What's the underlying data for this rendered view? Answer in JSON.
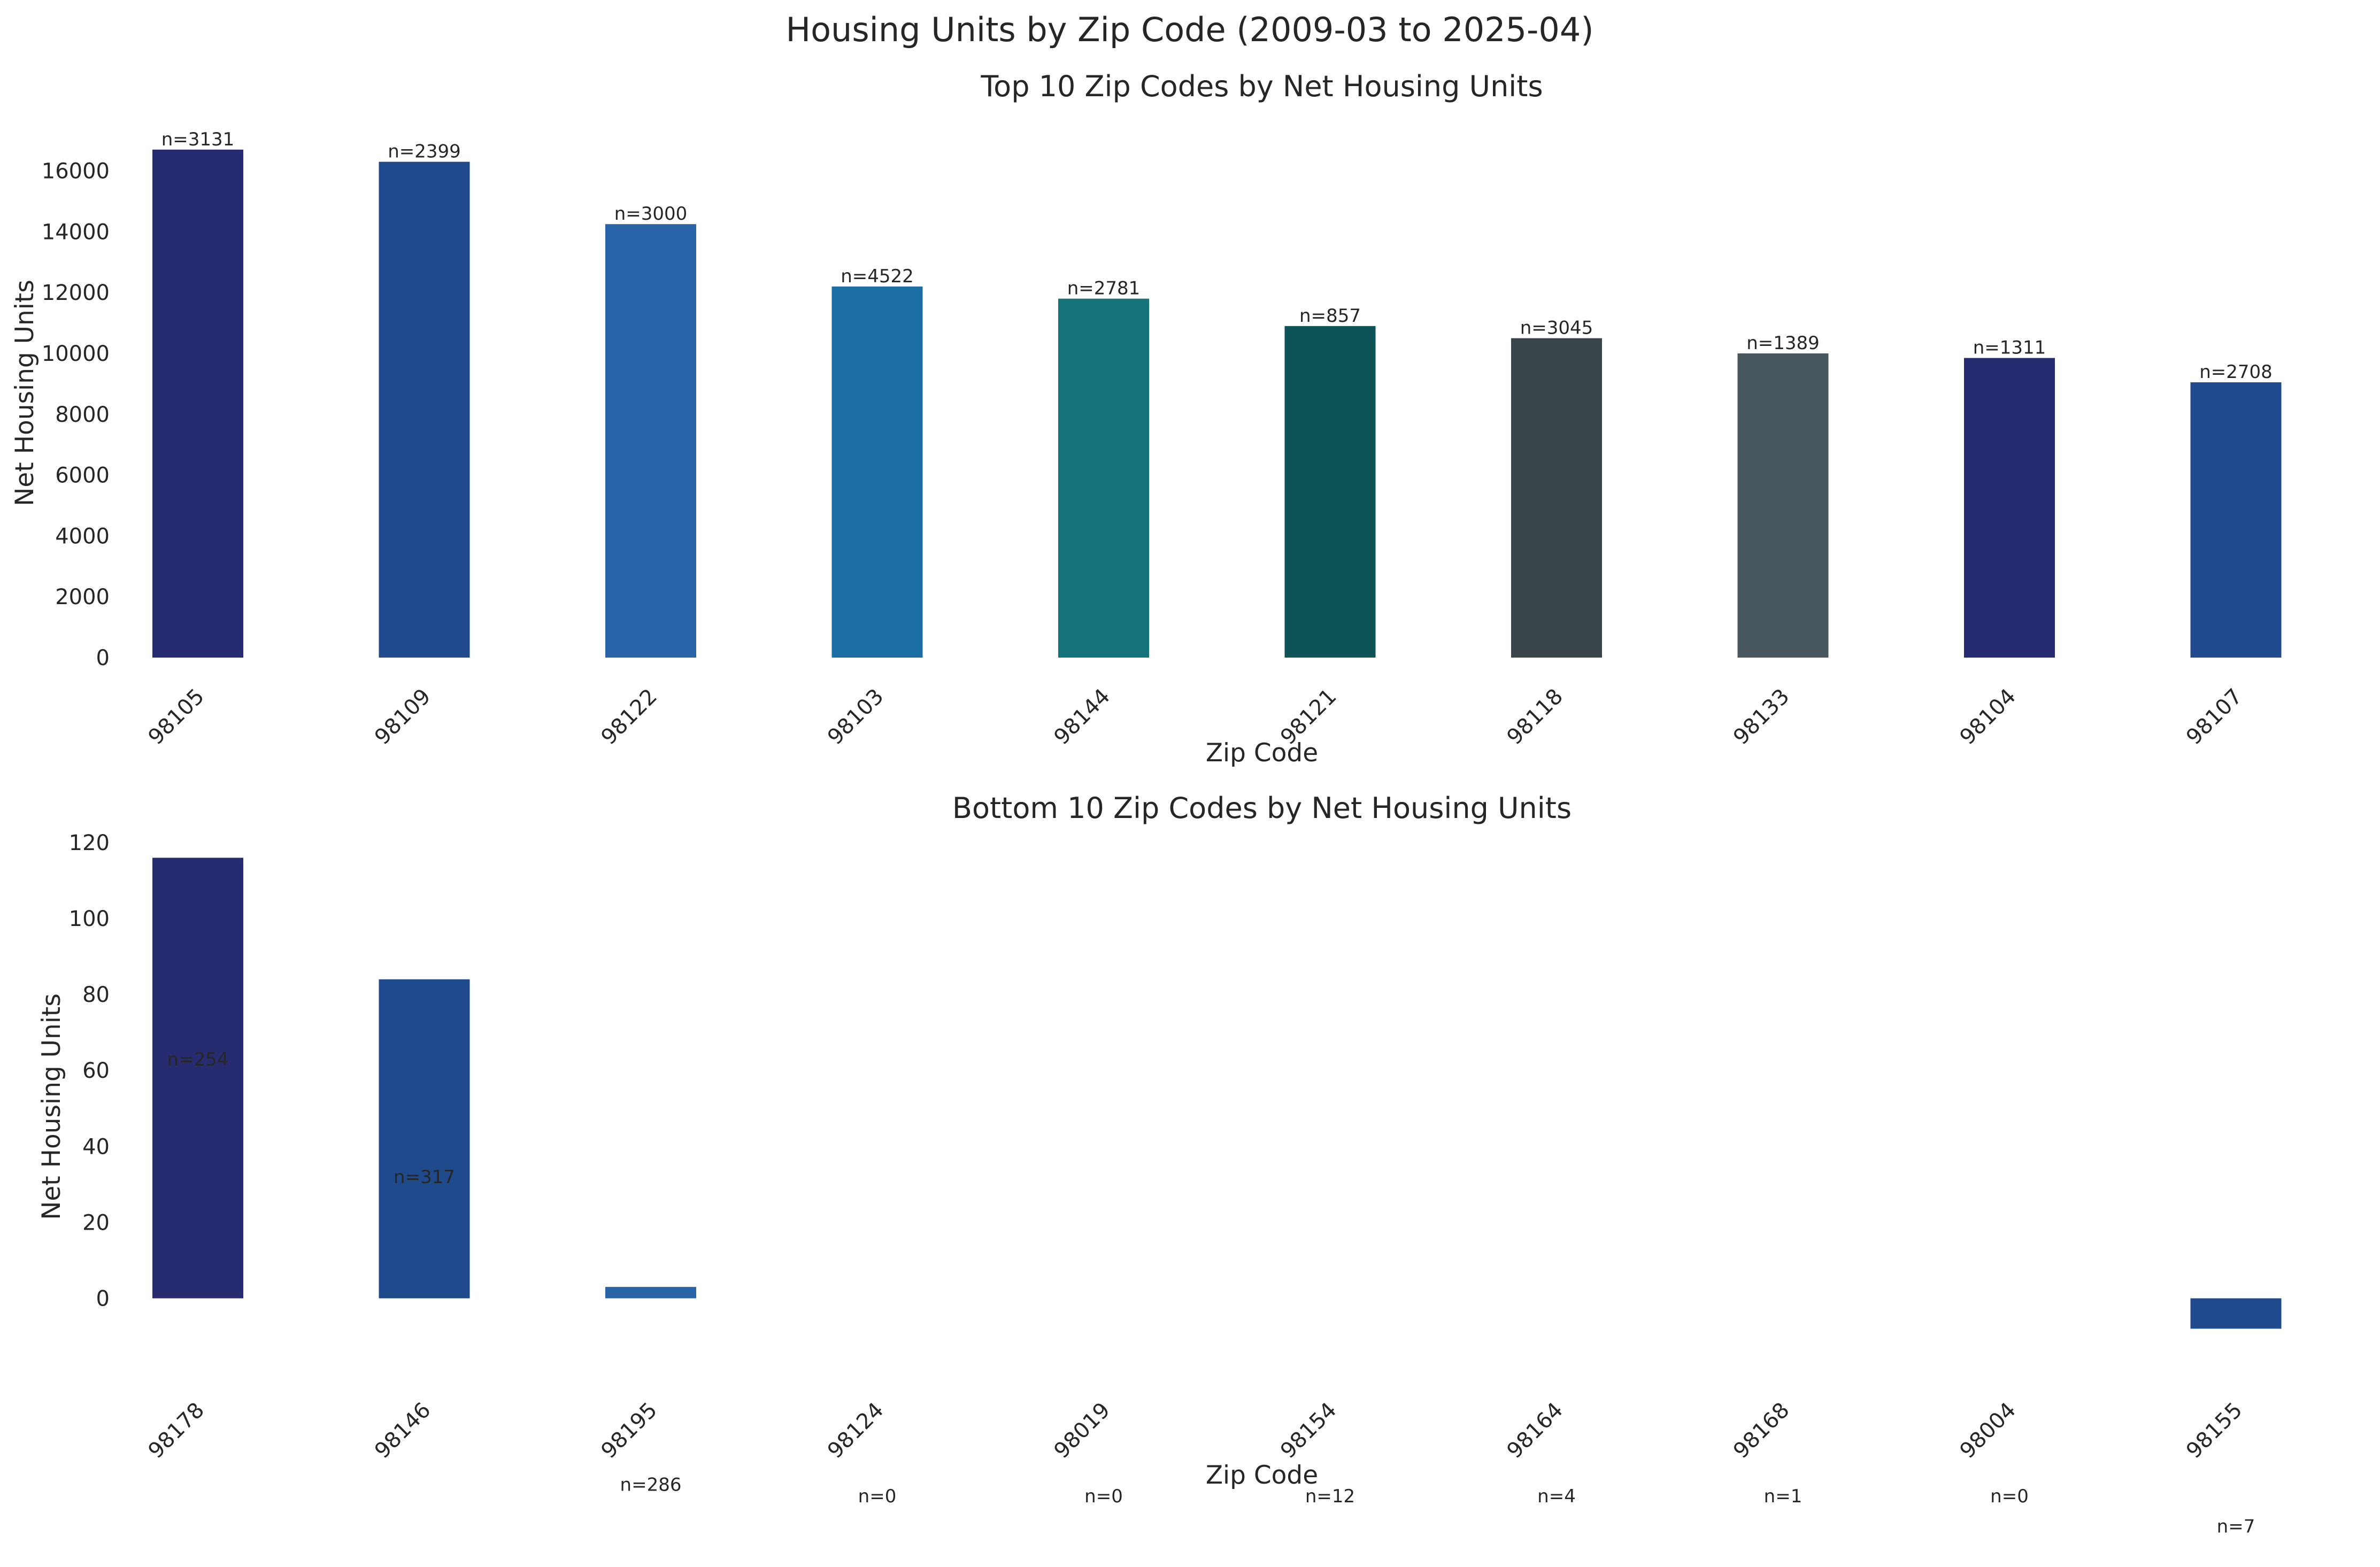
{
  "figure": {
    "title": "Housing Units by Zip Code (2009-03 to 2025-04)"
  },
  "chart_data": [
    {
      "type": "bar",
      "title": "Top 10 Zip Codes by Net Housing Units",
      "xlabel": "Zip Code",
      "ylabel": "Net Housing Units",
      "categories": [
        "98105",
        "98109",
        "98122",
        "98103",
        "98144",
        "98121",
        "98118",
        "98133",
        "98104",
        "98107"
      ],
      "values": [
        16700,
        16300,
        14250,
        12200,
        11800,
        10900,
        10500,
        10000,
        9850,
        9050
      ],
      "annotations": [
        "n=3131",
        "n=2399",
        "n=3000",
        "n=4522",
        "n=2781",
        "n=857",
        "n=3045",
        "n=1389",
        "n=1311",
        "n=2708"
      ],
      "colors": [
        "#262c6f",
        "#1f4a8c",
        "#2a64a8",
        "#1b6ea4",
        "#14737a",
        "#0e5356",
        "#39444b",
        "#48585e",
        "#262c6f",
        "#1f4a8c"
      ],
      "yticks": [
        0,
        2000,
        4000,
        6000,
        8000,
        10000,
        12000,
        14000,
        16000
      ],
      "ylim": [
        0,
        17400
      ],
      "grid": false
    },
    {
      "type": "bar",
      "title": "Bottom 10 Zip Codes by Net Housing Units",
      "xlabel": "Zip Code",
      "ylabel": "Net Housing Units",
      "categories": [
        "98178",
        "98146",
        "98195",
        "98124",
        "98019",
        "98154",
        "98164",
        "98168",
        "98004",
        "98155"
      ],
      "values": [
        116,
        84,
        3,
        0,
        0,
        0,
        0,
        0,
        0,
        -8
      ],
      "annotations": [
        "n=254",
        "n=317",
        "n=286",
        "n=0",
        "n=0",
        "n=12",
        "n=4",
        "n=1",
        "n=0",
        "n=7"
      ],
      "annotation_y": [
        63,
        32,
        -49,
        -52,
        -52,
        -52,
        -52,
        -52,
        -52,
        -60
      ],
      "colors": [
        "#262c6f",
        "#1f4a8c",
        "#2a64a8",
        "#1b6ea4",
        "#14737a",
        "#0e5356",
        "#39444b",
        "#48585e",
        "#262c6f",
        "#1f4a8c"
      ],
      "yticks": [
        0,
        20,
        40,
        60,
        80,
        100,
        120
      ],
      "ylim": [
        -15,
        120
      ],
      "grid": false
    }
  ]
}
